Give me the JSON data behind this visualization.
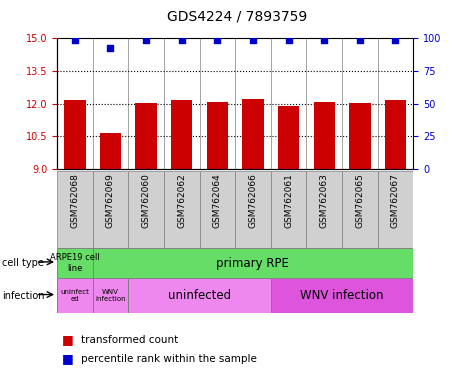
{
  "title": "GDS4224 / 7893759",
  "samples": [
    "GSM762068",
    "GSM762069",
    "GSM762060",
    "GSM762062",
    "GSM762064",
    "GSM762066",
    "GSM762061",
    "GSM762063",
    "GSM762065",
    "GSM762067"
  ],
  "red_values": [
    12.15,
    10.65,
    12.05,
    12.15,
    12.1,
    12.2,
    11.9,
    12.1,
    12.05,
    12.15
  ],
  "blue_values": [
    99,
    93,
    99,
    99,
    99,
    99,
    99,
    99,
    99,
    99
  ],
  "ylim_left": [
    9,
    15
  ],
  "ylim_right": [
    0,
    100
  ],
  "yticks_left": [
    9,
    10.5,
    12,
    13.5,
    15
  ],
  "yticks_right": [
    0,
    25,
    50,
    75,
    100
  ],
  "grid_values": [
    10.5,
    12.0,
    13.5
  ],
  "bar_color": "#cc0000",
  "dot_color": "#0000cc",
  "bar_bottom": 9,
  "bar_width": 0.6,
  "left_label_color": "#cc0000",
  "right_label_color": "#0000cc",
  "cell_type_green": "#66dd66",
  "infection_pink_light": "#ee88ee",
  "infection_pink_dark": "#dd55dd",
  "label_bg_gray": "#d0d0d0",
  "tick_fontsize": 7,
  "xlabel_fontsize": 6.5,
  "title_fontsize": 10
}
